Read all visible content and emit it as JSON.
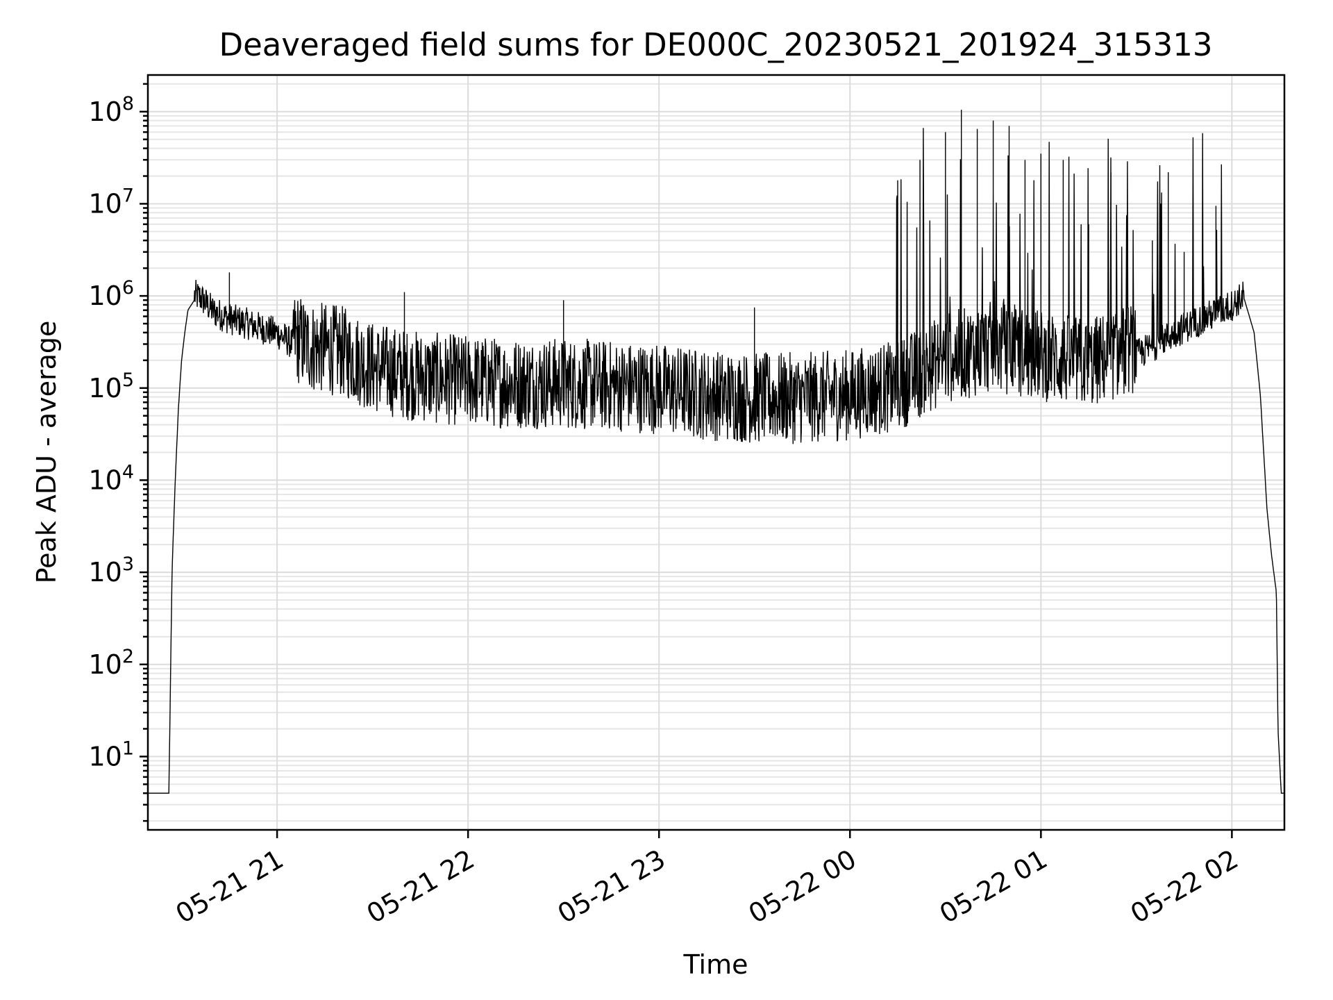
{
  "chart_data": {
    "type": "line",
    "title": "Deaveraged field sums for DE000C_20230521_201924_315313",
    "xlabel": "Time",
    "ylabel": "Peak ADU - average",
    "yscale": "log",
    "ylim": [
      1.6,
      250000000
    ],
    "xlim": [
      "2023-05-21 20:19:24",
      "2023-05-22 02:16:30"
    ],
    "grid": true,
    "xticks": [
      {
        "value": "2023-05-21 21:00",
        "label": "05-21 21"
      },
      {
        "value": "2023-05-21 22:00",
        "label": "05-21 22"
      },
      {
        "value": "2023-05-21 23:00",
        "label": "05-21 23"
      },
      {
        "value": "2023-05-22 00:00",
        "label": "05-22 00"
      },
      {
        "value": "2023-05-22 01:00",
        "label": "05-22 01"
      },
      {
        "value": "2023-05-22 02:00",
        "label": "05-22 02"
      }
    ],
    "yticks": [
      {
        "value": 10,
        "base": "10",
        "exp": "1"
      },
      {
        "value": 100,
        "base": "10",
        "exp": "2"
      },
      {
        "value": 1000,
        "base": "10",
        "exp": "3"
      },
      {
        "value": 10000,
        "base": "10",
        "exp": "4"
      },
      {
        "value": 100000,
        "base": "10",
        "exp": "5"
      },
      {
        "value": 1000000,
        "base": "10",
        "exp": "6"
      },
      {
        "value": 10000000,
        "base": "10",
        "exp": "7"
      },
      {
        "value": 100000000,
        "base": "10",
        "exp": "8"
      }
    ],
    "series": [
      {
        "color": "#000000",
        "x": [
          "2023-05-21 20:19:24",
          "2023-05-21 20:26:00",
          "2023-05-21 20:27:00",
          "2023-05-21 20:28:00",
          "2023-05-21 20:29:00",
          "2023-05-21 20:30:00",
          "2023-05-21 20:31:00",
          "2023-05-21 20:32:00",
          "2023-05-21 20:34:00",
          "2023-05-21 20:36:00",
          "2023-05-21 20:40:00",
          "2023-05-21 20:45:00",
          "2023-05-21 20:50:00",
          "2023-05-21 21:00:00",
          "2023-05-21 21:10:00",
          "2023-05-21 21:20:00",
          "2023-05-21 21:30:00",
          "2023-05-21 21:40:00",
          "2023-05-21 21:50:00",
          "2023-05-21 22:00:00",
          "2023-05-21 22:15:00",
          "2023-05-21 22:30:00",
          "2023-05-21 22:45:00",
          "2023-05-21 23:00:00",
          "2023-05-21 23:15:00",
          "2023-05-21 23:30:00",
          "2023-05-21 23:45:00",
          "2023-05-22 00:00:00",
          "2023-05-22 00:15:00",
          "2023-05-22 00:30:00",
          "2023-05-22 00:45:00",
          "2023-05-22 01:00:00",
          "2023-05-22 01:15:00",
          "2023-05-22 01:30:00",
          "2023-05-22 01:45:00",
          "2023-05-22 02:00:00",
          "2023-05-22 02:04:00",
          "2023-05-22 02:07:00",
          "2023-05-22 02:09:00",
          "2023-05-22 02:11:00",
          "2023-05-22 02:12:30",
          "2023-05-22 02:14:00",
          "2023-05-22 02:14:30",
          "2023-05-22 02:15:30",
          "2023-05-22 02:16:30"
        ],
        "y": [
          4,
          4,
          1000,
          10000,
          60000,
          200000,
          400000,
          700000,
          900000,
          850000,
          600000,
          500000,
          450000,
          350000,
          200000,
          180000,
          120000,
          100000,
          90000,
          85000,
          80000,
          80000,
          75000,
          70000,
          60000,
          55000,
          55000,
          60000,
          75000,
          150000,
          200000,
          160000,
          130000,
          200000,
          400000,
          700000,
          900000,
          400000,
          80000,
          5000,
          1500,
          600,
          20,
          4,
          4
        ],
        "peaks": [
          {
            "x": "2023-05-21 20:45:00",
            "y": 1800000
          },
          {
            "x": "2023-05-21 21:40:00",
            "y": 1100000
          },
          {
            "x": "2023-05-21 22:30:00",
            "y": 900000
          },
          {
            "x": "2023-05-21 23:30:00",
            "y": 750000
          },
          {
            "x": "2023-05-22 00:15:00",
            "y": 18000000
          },
          {
            "x": "2023-05-22 00:22:00",
            "y": 30000000
          },
          {
            "x": "2023-05-22 00:30:00",
            "y": 60000000
          },
          {
            "x": "2023-05-22 00:35:00",
            "y": 105000000
          },
          {
            "x": "2023-05-22 00:40:00",
            "y": 65000000
          },
          {
            "x": "2023-05-22 00:45:00",
            "y": 80000000
          },
          {
            "x": "2023-05-22 00:50:00",
            "y": 70000000
          },
          {
            "x": "2023-05-22 00:55:00",
            "y": 30000000
          },
          {
            "x": "2023-05-22 01:00:00",
            "y": 35000000
          },
          {
            "x": "2023-05-22 01:07:00",
            "y": 30000000
          },
          {
            "x": "2023-05-22 01:15:00",
            "y": 6000000
          },
          {
            "x": "2023-05-22 01:22:00",
            "y": 22000000
          },
          {
            "x": "2023-05-22 01:35:00",
            "y": 4000000
          },
          {
            "x": "2023-05-22 01:40:00",
            "y": 22000000
          },
          {
            "x": "2023-05-22 01:45:00",
            "y": 3000000
          },
          {
            "x": "2023-05-22 01:55:00",
            "y": 9500000
          }
        ]
      }
    ]
  }
}
